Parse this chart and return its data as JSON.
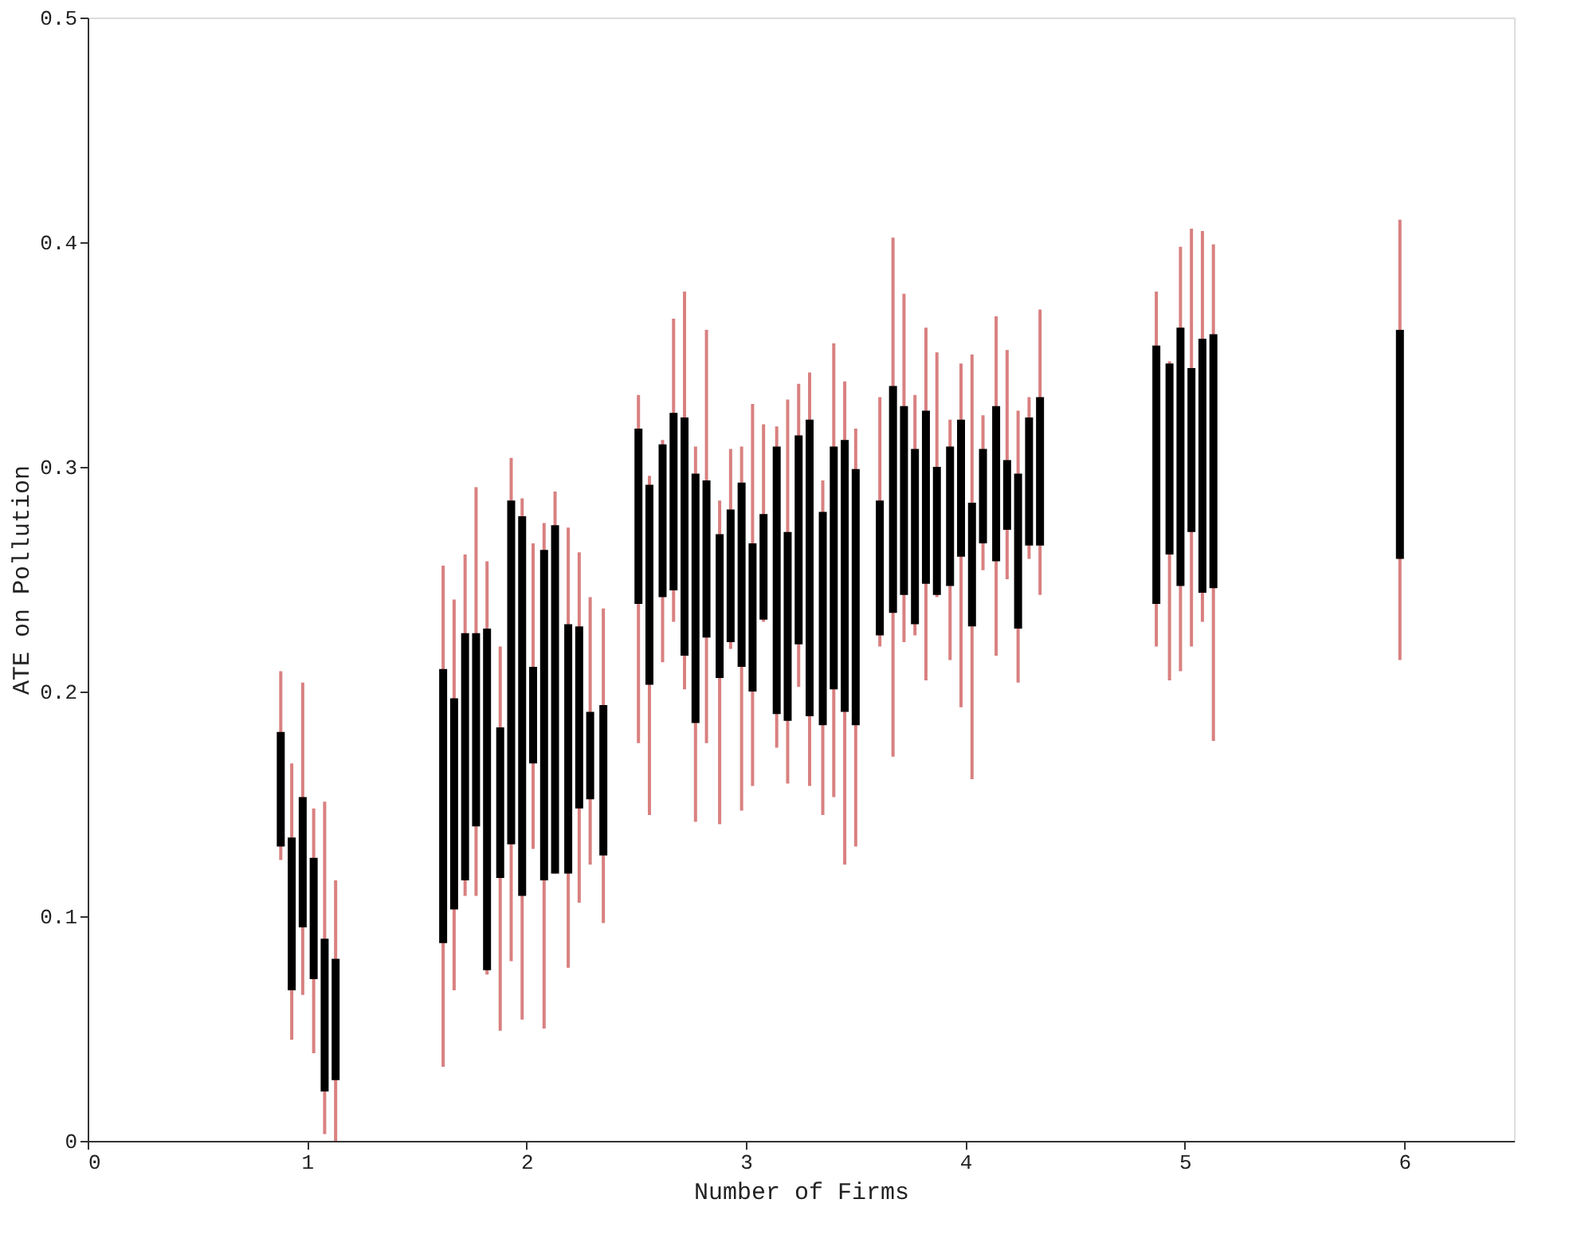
{
  "chart_data": {
    "type": "bar",
    "xlabel": "Number of Firms",
    "ylabel": "ATE on Pollution",
    "x": [
      0.88,
      0.93,
      0.98,
      1.03,
      1.08,
      1.13,
      1.62,
      1.67,
      1.72,
      1.77,
      1.82,
      1.88,
      1.93,
      1.98,
      2.03,
      2.08,
      2.13,
      2.19,
      2.24,
      2.29,
      2.35,
      2.51,
      2.56,
      2.62,
      2.67,
      2.72,
      2.77,
      2.82,
      2.88,
      2.93,
      2.98,
      3.03,
      3.08,
      3.14,
      3.19,
      3.24,
      3.29,
      3.35,
      3.4,
      3.45,
      3.5,
      3.61,
      3.67,
      3.72,
      3.77,
      3.82,
      3.87,
      3.93,
      3.98,
      4.03,
      4.08,
      4.14,
      4.19,
      4.24,
      4.29,
      4.34,
      4.87,
      4.93,
      4.98,
      5.03,
      5.08,
      5.13,
      5.98
    ],
    "series": [
      {
        "color": "#000000",
        "base": [
          0.131,
          0.067,
          0.095,
          0.072,
          0.022,
          0.027,
          0.088,
          0.103,
          0.116,
          0.14,
          0.076,
          0.117,
          0.132,
          0.109,
          0.168,
          0.116,
          0.119,
          0.119,
          0.148,
          0.152,
          0.127,
          0.239,
          0.203,
          0.242,
          0.245,
          0.216,
          0.186,
          0.224,
          0.206,
          0.222,
          0.211,
          0.2,
          0.232,
          0.19,
          0.187,
          0.221,
          0.189,
          0.185,
          0.201,
          0.191,
          0.185,
          0.225,
          0.235,
          0.243,
          0.23,
          0.248,
          0.243,
          0.247,
          0.26,
          0.229,
          0.266,
          0.258,
          0.272,
          0.228,
          0.265,
          0.265,
          0.239,
          0.261,
          0.247,
          0.271,
          0.244,
          0.246,
          0.259
        ],
        "values": [
          0.051,
          0.068,
          0.058,
          0.054,
          0.068,
          0.054,
          0.122,
          0.094,
          0.11,
          0.086,
          0.152,
          0.067,
          0.153,
          0.169,
          0.043,
          0.147,
          0.155,
          0.111,
          0.081,
          0.039,
          0.067,
          0.078,
          0.089,
          0.068,
          0.079,
          0.106,
          0.111,
          0.07,
          0.064,
          0.059,
          0.082,
          0.066,
          0.047,
          0.119,
          0.084,
          0.093,
          0.132,
          0.095,
          0.108,
          0.121,
          0.114,
          0.06,
          0.101,
          0.084,
          0.078,
          0.077,
          0.057,
          0.062,
          0.061,
          0.055,
          0.042,
          0.069,
          0.031,
          0.069,
          0.057,
          0.066,
          0.115,
          0.085,
          0.115,
          0.073,
          0.113,
          0.113,
          0.102
        ],
        "errors": [
          [
            0.125,
            0.209
          ],
          [
            0.045,
            0.168
          ],
          [
            0.065,
            0.204
          ],
          [
            0.039,
            0.148
          ],
          [
            0.003,
            0.151
          ],
          [
            0,
            0.116
          ],
          [
            0.033,
            0.256
          ],
          [
            0.067,
            0.241
          ],
          [
            0.109,
            0.261
          ],
          [
            0.109,
            0.291
          ],
          [
            0.074,
            0.258
          ],
          [
            0.049,
            0.22
          ],
          [
            0.08,
            0.304
          ],
          [
            0.054,
            0.286
          ],
          [
            0.13,
            0.266
          ],
          [
            0.05,
            0.275
          ],
          [
            0.119,
            0.289
          ],
          [
            0.077,
            0.273
          ],
          [
            0.106,
            0.262
          ],
          [
            0.123,
            0.242
          ],
          [
            0.097,
            0.237
          ],
          [
            0.177,
            0.332
          ],
          [
            0.145,
            0.296
          ],
          [
            0.213,
            0.312
          ],
          [
            0.231,
            0.366
          ],
          [
            0.201,
            0.378
          ],
          [
            0.142,
            0.309
          ],
          [
            0.177,
            0.361
          ],
          [
            0.141,
            0.285
          ],
          [
            0.219,
            0.308
          ],
          [
            0.147,
            0.309
          ],
          [
            0.158,
            0.328
          ],
          [
            0.231,
            0.319
          ],
          [
            0.175,
            0.318
          ],
          [
            0.159,
            0.33
          ],
          [
            0.202,
            0.337
          ],
          [
            0.158,
            0.342
          ],
          [
            0.145,
            0.294
          ],
          [
            0.153,
            0.355
          ],
          [
            0.123,
            0.338
          ],
          [
            0.131,
            0.317
          ],
          [
            0.22,
            0.331
          ],
          [
            0.171,
            0.402
          ],
          [
            0.222,
            0.377
          ],
          [
            0.225,
            0.332
          ],
          [
            0.205,
            0.362
          ],
          [
            0.242,
            0.351
          ],
          [
            0.214,
            0.321
          ],
          [
            0.193,
            0.346
          ],
          [
            0.161,
            0.35
          ],
          [
            0.254,
            0.323
          ],
          [
            0.216,
            0.367
          ],
          [
            0.25,
            0.352
          ],
          [
            0.204,
            0.325
          ],
          [
            0.259,
            0.331
          ],
          [
            0.243,
            0.37
          ],
          [
            0.22,
            0.378
          ],
          [
            0.205,
            0.347
          ],
          [
            0.209,
            0.398
          ],
          [
            0.22,
            0.406
          ],
          [
            0.231,
            0.405
          ],
          [
            0.178,
            0.399
          ],
          [
            0.214,
            0.41
          ]
        ]
      }
    ],
    "xlim": [
      0,
      6.5
    ],
    "xticks": [
      0,
      1,
      2,
      3,
      4,
      5,
      6
    ],
    "ylim": [
      0,
      0.5
    ],
    "yticks": [
      0,
      0.1,
      0.2,
      0.3,
      0.4,
      0.5
    ],
    "grid": false
  }
}
